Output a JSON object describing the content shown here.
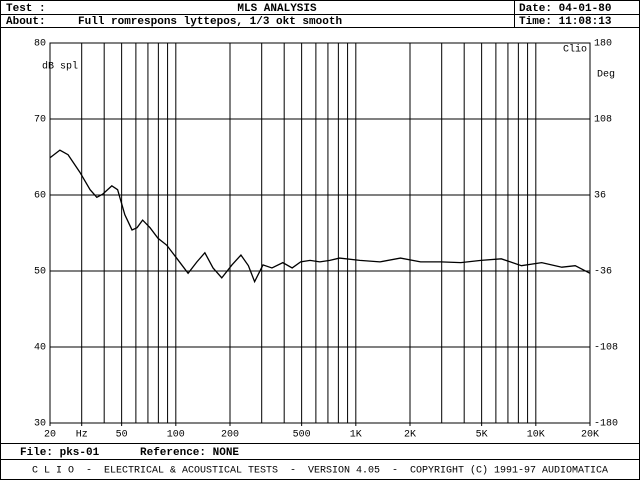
{
  "header": {
    "test_label": "Test :",
    "title": "MLS ANALYSIS",
    "date": "Date: 04-01-80",
    "about_label": "About:",
    "about": "Full romrespons lyttepos, 1/3 okt smooth",
    "time": "Time: 11:08:13"
  },
  "chart_data": {
    "type": "line",
    "log_x": true,
    "grid": true,
    "color": "#000000",
    "ylabel": "dB spl",
    "y2label": "Deg",
    "badge": "Clio",
    "x": [
      20,
      22.7,
      25.2,
      29.3,
      33.4,
      36.4,
      39.2,
      44.1,
      47.5,
      52.1,
      57.1,
      60.9,
      65.4,
      71.9,
      79.6,
      89,
      101,
      117,
      131,
      145,
      161,
      180,
      205,
      230,
      253,
      274,
      305,
      342,
      393,
      443,
      494,
      557,
      631,
      717,
      812,
      1053,
      1363,
      1770,
      2290,
      2960,
      3830,
      4960,
      6430,
      8320,
      10780,
      13950,
      16550,
      20000
    ],
    "values": [
      64.9,
      65.9,
      65.3,
      63.0,
      60.7,
      59.7,
      60.1,
      61.2,
      60.7,
      57.4,
      55.4,
      55.7,
      56.7,
      55.7,
      54.3,
      53.4,
      51.7,
      49.7,
      51.2,
      52.4,
      50.4,
      49.1,
      50.8,
      52.1,
      50.7,
      48.6,
      50.8,
      50.4,
      51.1,
      50.4,
      51.2,
      51.4,
      51.2,
      51.4,
      51.7,
      51.4,
      51.2,
      51.7,
      51.2,
      51.2,
      51.1,
      51.4,
      51.6,
      50.7,
      51.1,
      50.5,
      50.7,
      49.7
    ],
    "xlim": [
      20,
      20000
    ],
    "xticks": [
      20,
      {
        "value": 30,
        "label": "Hz"
      },
      50,
      100,
      200,
      500,
      {
        "value": 1000,
        "label": "1K"
      },
      {
        "value": 2000,
        "label": "2K"
      },
      {
        "value": 5000,
        "label": "5K"
      },
      {
        "value": 10000,
        "label": "10K"
      },
      {
        "value": 20000,
        "label": "20K"
      }
    ],
    "xgrid": [
      30,
      40,
      50,
      60,
      70,
      80,
      90,
      100,
      200,
      300,
      400,
      500,
      600,
      700,
      800,
      900,
      1000,
      2000,
      3000,
      4000,
      5000,
      6000,
      7000,
      8000,
      9000,
      10000
    ],
    "ylim": [
      30,
      80
    ],
    "yticks": [
      30,
      40,
      50,
      60,
      70,
      80
    ],
    "y2lim": [
      -180,
      180
    ],
    "y2ticks": [
      180,
      108,
      36,
      -36,
      -108,
      -180
    ]
  },
  "footer": {
    "file": "File: pks-01",
    "reference": "Reference: NONE",
    "banner": "C L I O  -  ELECTRICAL & ACOUSTICAL TESTS  -  VERSION 4.05  -  COPYRIGHT (C) 1991-97 AUDIOMATICA"
  }
}
